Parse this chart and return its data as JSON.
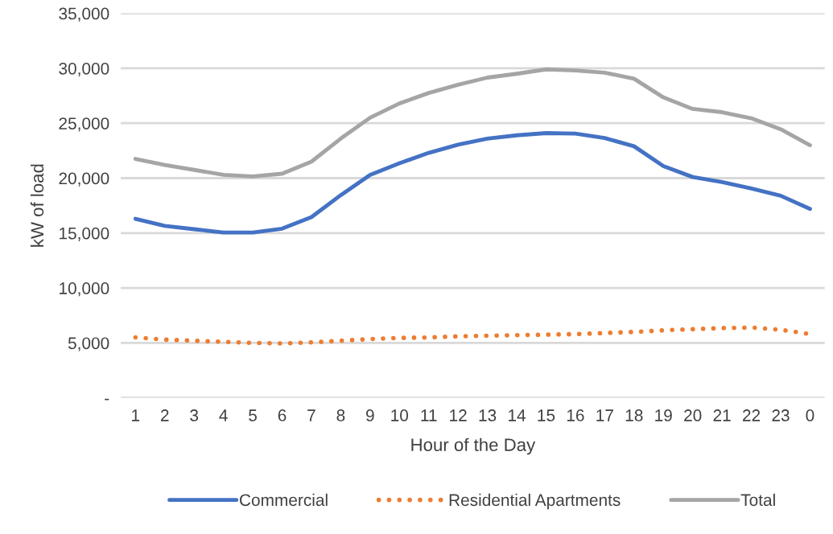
{
  "chart_data": {
    "type": "line",
    "xlabel": "Hour of the Day",
    "ylabel": "kW of load",
    "categories": [
      "1",
      "2",
      "3",
      "4",
      "5",
      "6",
      "7",
      "8",
      "9",
      "10",
      "11",
      "12",
      "13",
      "14",
      "15",
      "16",
      "17",
      "18",
      "19",
      "20",
      "21",
      "22",
      "23",
      "0"
    ],
    "series": [
      {
        "name": "Commercial",
        "color": "#4472c4",
        "line_style": "solid",
        "values": [
          16300,
          15650,
          15350,
          15050,
          15050,
          15400,
          16450,
          18450,
          20300,
          21350,
          22300,
          23050,
          23600,
          23900,
          24100,
          24050,
          23650,
          22900,
          21100,
          20100,
          19650,
          19050,
          18400,
          17200
        ]
      },
      {
        "name": "Residential Apartments",
        "color": "#ed7d31",
        "line_style": "dotted",
        "values": [
          5500,
          5300,
          5200,
          5100,
          5000,
          4950,
          5050,
          5200,
          5350,
          5450,
          5500,
          5600,
          5650,
          5700,
          5750,
          5800,
          5900,
          6000,
          6150,
          6250,
          6350,
          6400,
          6200,
          5800
        ]
      },
      {
        "name": "Total",
        "color": "#a5a5a5",
        "line_style": "solid",
        "values": [
          21750,
          21200,
          20750,
          20300,
          20150,
          20400,
          21500,
          23600,
          25500,
          26800,
          27750,
          28500,
          29150,
          29500,
          29900,
          29800,
          29600,
          29050,
          27350,
          26300,
          26000,
          25450,
          24450,
          23000
        ]
      }
    ],
    "ylim": [
      0,
      35000
    ],
    "yticks": [
      {
        "value": 0,
        "label": "-"
      },
      {
        "value": 5000,
        "label": "5,000"
      },
      {
        "value": 10000,
        "label": "10,000"
      },
      {
        "value": 15000,
        "label": "15,000"
      },
      {
        "value": 20000,
        "label": "20,000"
      },
      {
        "value": 25000,
        "label": "25,000"
      },
      {
        "value": 30000,
        "label": "30,000"
      },
      {
        "value": 35000,
        "label": "35,000"
      }
    ],
    "grid": "y",
    "legend": "bottom",
    "marker": "none"
  }
}
